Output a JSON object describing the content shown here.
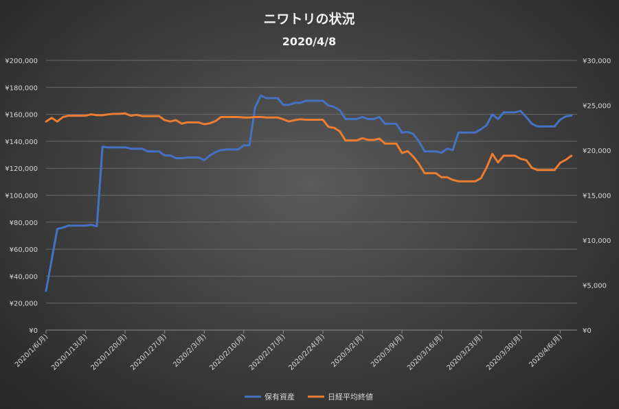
{
  "chart_data": {
    "type": "line",
    "title": "ニワトリの状況",
    "subtitle": "2020/4/8",
    "y_left": {
      "min": 0,
      "max": 200000,
      "step": 20000,
      "tick_labels": [
        "¥0",
        "¥20,000",
        "¥40,000",
        "¥60,000",
        "¥80,000",
        "¥100,000",
        "¥120,000",
        "¥140,000",
        "¥160,000",
        "¥180,000",
        "¥200,000"
      ]
    },
    "y_right": {
      "min": 0,
      "max": 30000,
      "step": 5000,
      "tick_labels": [
        "¥0",
        "¥5,000",
        "¥10,000",
        "¥15,000",
        "¥20,000",
        "¥25,000",
        "¥30,000"
      ]
    },
    "x_tick_labels": [
      "2020/1/6(月)",
      "2020/1/13(月)",
      "2020/1/20(月)",
      "2020/1/27(月)",
      "2020/2/3(月)",
      "2020/2/10(月)",
      "2020/2/17(月)",
      "2020/2/24(月)",
      "2020/3/2(月)",
      "2020/3/9(月)",
      "2020/3/16(月)",
      "2020/3/23(月)",
      "2020/3/30(月)",
      "2020/4/6(月)"
    ],
    "x_day_offsets_of_ticks": [
      0,
      7,
      14,
      21,
      28,
      35,
      42,
      49,
      56,
      63,
      70,
      77,
      84,
      91
    ],
    "x_range_days": [
      0,
      94
    ],
    "grid": "horizontal",
    "legend_position": "bottom",
    "series": [
      {
        "name": "保有資産",
        "axis": "left",
        "color": "#4472c4",
        "points": [
          [
            0,
            29000
          ],
          [
            1,
            52000
          ],
          [
            2,
            75000
          ],
          [
            3,
            76000
          ],
          [
            4,
            77500
          ],
          [
            5,
            77500
          ],
          [
            6,
            77500
          ],
          [
            7,
            77500
          ],
          [
            8,
            78000
          ],
          [
            9,
            77000
          ],
          [
            10,
            136000
          ],
          [
            11,
            135500
          ],
          [
            12,
            135500
          ],
          [
            13,
            135500
          ],
          [
            14,
            135500
          ],
          [
            15,
            134500
          ],
          [
            16,
            134500
          ],
          [
            17,
            134500
          ],
          [
            18,
            132500
          ],
          [
            19,
            132500
          ],
          [
            20,
            132500
          ],
          [
            21,
            129500
          ],
          [
            22,
            129500
          ],
          [
            23,
            127500
          ],
          [
            24,
            127500
          ],
          [
            25,
            128000
          ],
          [
            26,
            128000
          ],
          [
            27,
            128000
          ],
          [
            28,
            126000
          ],
          [
            29,
            129500
          ],
          [
            30,
            132000
          ],
          [
            31,
            133500
          ],
          [
            32,
            134000
          ],
          [
            33,
            134000
          ],
          [
            34,
            134000
          ],
          [
            35,
            137000
          ],
          [
            36,
            137000
          ],
          [
            37,
            165000
          ],
          [
            38,
            174000
          ],
          [
            39,
            172000
          ],
          [
            40,
            172000
          ],
          [
            41,
            172000
          ],
          [
            42,
            167000
          ],
          [
            43,
            167000
          ],
          [
            44,
            168500
          ],
          [
            45,
            168500
          ],
          [
            46,
            170000
          ],
          [
            47,
            170000
          ],
          [
            48,
            170000
          ],
          [
            49,
            170000
          ],
          [
            50,
            166500
          ],
          [
            51,
            165500
          ],
          [
            52,
            163000
          ],
          [
            53,
            156500
          ],
          [
            54,
            156500
          ],
          [
            55,
            156500
          ],
          [
            56,
            158000
          ],
          [
            57,
            156500
          ],
          [
            58,
            156500
          ],
          [
            59,
            158000
          ],
          [
            60,
            153000
          ],
          [
            61,
            153000
          ],
          [
            62,
            153000
          ],
          [
            63,
            146500
          ],
          [
            64,
            147000
          ],
          [
            65,
            145500
          ],
          [
            66,
            140000
          ],
          [
            67,
            132500
          ],
          [
            68,
            132500
          ],
          [
            69,
            132500
          ],
          [
            70,
            131500
          ],
          [
            71,
            134500
          ],
          [
            72,
            133500
          ],
          [
            73,
            146500
          ],
          [
            74,
            146500
          ],
          [
            75,
            146500
          ],
          [
            76,
            146500
          ],
          [
            77,
            149000
          ],
          [
            78,
            152000
          ],
          [
            79,
            160000
          ],
          [
            80,
            156500
          ],
          [
            81,
            161500
          ],
          [
            82,
            161500
          ],
          [
            83,
            161500
          ],
          [
            84,
            162500
          ],
          [
            85,
            158000
          ],
          [
            86,
            153000
          ],
          [
            87,
            151000
          ],
          [
            88,
            151000
          ],
          [
            89,
            151000
          ],
          [
            90,
            151000
          ],
          [
            91,
            156000
          ],
          [
            92,
            158500
          ],
          [
            93,
            159000
          ]
        ]
      },
      {
        "name": "日経平均終値",
        "axis": "right",
        "color": "#ed7d31",
        "points": [
          [
            0,
            23200
          ],
          [
            1,
            23600
          ],
          [
            2,
            23200
          ],
          [
            3,
            23700
          ],
          [
            4,
            23850
          ],
          [
            5,
            23850
          ],
          [
            6,
            23850
          ],
          [
            7,
            23850
          ],
          [
            8,
            24000
          ],
          [
            9,
            23900
          ],
          [
            10,
            23900
          ],
          [
            11,
            24000
          ],
          [
            12,
            24050
          ],
          [
            13,
            24050
          ],
          [
            14,
            24100
          ],
          [
            15,
            23850
          ],
          [
            16,
            23950
          ],
          [
            17,
            23800
          ],
          [
            18,
            23800
          ],
          [
            19,
            23800
          ],
          [
            20,
            23800
          ],
          [
            21,
            23350
          ],
          [
            22,
            23200
          ],
          [
            23,
            23350
          ],
          [
            24,
            22970
          ],
          [
            25,
            23100
          ],
          [
            26,
            23100
          ],
          [
            27,
            23100
          ],
          [
            28,
            22900
          ],
          [
            29,
            23000
          ],
          [
            30,
            23250
          ],
          [
            31,
            23700
          ],
          [
            32,
            23700
          ],
          [
            33,
            23700
          ],
          [
            34,
            23700
          ],
          [
            35,
            23650
          ],
          [
            36,
            23650
          ],
          [
            37,
            23700
          ],
          [
            38,
            23700
          ],
          [
            39,
            23650
          ],
          [
            40,
            23650
          ],
          [
            41,
            23650
          ],
          [
            42,
            23450
          ],
          [
            43,
            23200
          ],
          [
            44,
            23350
          ],
          [
            45,
            23450
          ],
          [
            46,
            23400
          ],
          [
            47,
            23400
          ],
          [
            48,
            23400
          ],
          [
            49,
            23400
          ],
          [
            50,
            22600
          ],
          [
            51,
            22500
          ],
          [
            52,
            22100
          ],
          [
            53,
            21100
          ],
          [
            54,
            21100
          ],
          [
            55,
            21100
          ],
          [
            56,
            21350
          ],
          [
            57,
            21150
          ],
          [
            58,
            21150
          ],
          [
            59,
            21300
          ],
          [
            60,
            20750
          ],
          [
            61,
            20750
          ],
          [
            62,
            20750
          ],
          [
            63,
            19700
          ],
          [
            64,
            19900
          ],
          [
            65,
            19300
          ],
          [
            66,
            18500
          ],
          [
            67,
            17450
          ],
          [
            68,
            17450
          ],
          [
            69,
            17450
          ],
          [
            70,
            17000
          ],
          [
            71,
            17000
          ],
          [
            72,
            16700
          ],
          [
            73,
            16550
          ],
          [
            74,
            16550
          ],
          [
            75,
            16550
          ],
          [
            76,
            16550
          ],
          [
            77,
            16900
          ],
          [
            78,
            18100
          ],
          [
            79,
            19600
          ],
          [
            80,
            18650
          ],
          [
            81,
            19400
          ],
          [
            82,
            19400
          ],
          [
            83,
            19400
          ],
          [
            84,
            19050
          ],
          [
            85,
            18900
          ],
          [
            86,
            18050
          ],
          [
            87,
            17800
          ],
          [
            88,
            17800
          ],
          [
            89,
            17800
          ],
          [
            90,
            17800
          ],
          [
            91,
            18600
          ],
          [
            92,
            18950
          ],
          [
            93,
            19400
          ]
        ]
      }
    ]
  }
}
